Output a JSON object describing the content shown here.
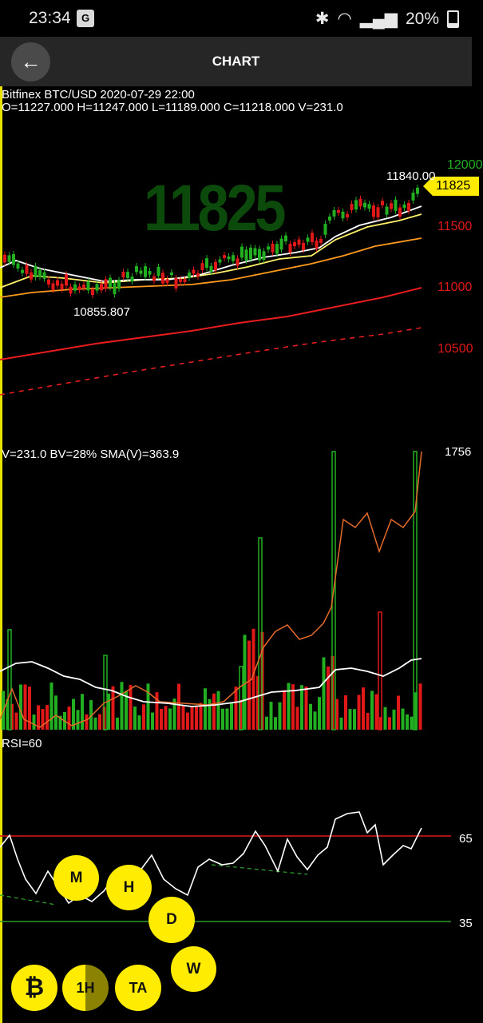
{
  "status_bar": {
    "time": "23:34",
    "battery": "20%",
    "translate_icon": "translate-icon"
  },
  "app_bar": {
    "title": "CHART",
    "back_icon": "arrow-left-icon"
  },
  "info_line1": "Bitfinex BTC/USD 2020-07-29 22:00",
  "info_line2": "O=11227.000 H=11247.000 L=11189.000 C=11218.000 V=231.0",
  "volume_info": "V=231.0 BV=28% SMA(V)=363.9",
  "rsi_info": "RSI=60",
  "watermark_price": "11825",
  "current_price_tag": "11825",
  "high_label": "11840.00",
  "low_label": "10855.807",
  "price_axis": [
    "12000",
    "11500",
    "11000",
    "10500"
  ],
  "volume_axis_max": "1756",
  "rsi_axis": [
    "65",
    "35"
  ],
  "colors": {
    "up": "#22b022",
    "down": "#e01818",
    "accent": "#ffec00",
    "rsi_line": "#ffffff"
  },
  "timeframe_buttons": {
    "m": "M",
    "h": "H",
    "d": "D",
    "w": "W"
  },
  "bottom_buttons": {
    "coin": "bitcoin-icon",
    "interval": "1H",
    "ta": "TA"
  }
}
